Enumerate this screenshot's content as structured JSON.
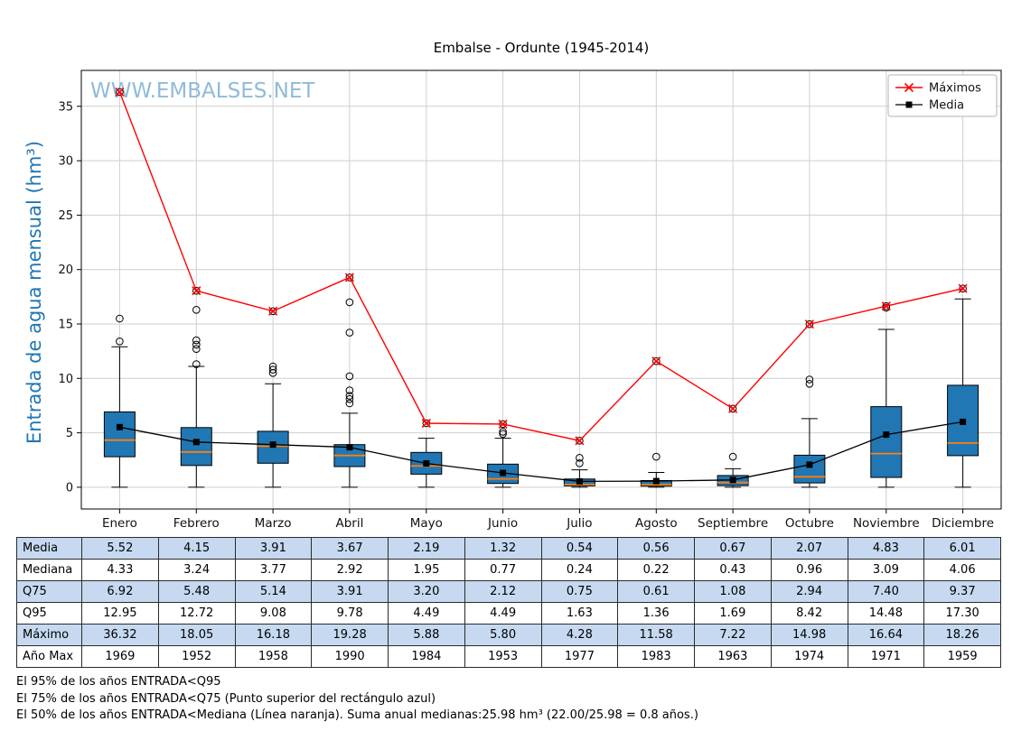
{
  "title": "Embalse - Ordunte (1945-2014)",
  "watermark": "WWW.EMBALSES.NET",
  "chart_data": {
    "type": "boxplot",
    "categories": [
      "Enero",
      "Febrero",
      "Marzo",
      "Abril",
      "Mayo",
      "Junio",
      "Julio",
      "Agosto",
      "Septiembre",
      "Octubre",
      "Noviembre",
      "Diciembre"
    ],
    "ylabel": "Entrada de agua mensual (hm³)",
    "ylim": [
      -2,
      38.3
    ],
    "yticks": [
      0,
      5,
      10,
      15,
      20,
      25,
      30,
      35
    ],
    "grid": true,
    "legend_position": "top-right",
    "legend": [
      {
        "label": "Máximos",
        "marker": "x",
        "color": "#ff0000"
      },
      {
        "label": "Media",
        "marker": "square",
        "color": "#000000"
      }
    ],
    "series": [
      {
        "name": "Máximos",
        "type": "line",
        "marker": "x",
        "color": "#ff0000",
        "values": [
          36.32,
          18.05,
          16.18,
          19.28,
          5.88,
          5.8,
          4.28,
          11.58,
          7.22,
          14.98,
          16.64,
          18.26
        ]
      },
      {
        "name": "Media",
        "type": "line",
        "marker": "square",
        "color": "#000000",
        "values": [
          5.52,
          4.15,
          3.91,
          3.67,
          2.19,
          1.32,
          0.54,
          0.56,
          0.67,
          2.07,
          4.83,
          6.01
        ]
      }
    ],
    "boxes": [
      {
        "q1": 2.8,
        "median": 4.33,
        "q3": 6.92,
        "lo": 0.0,
        "hi": 12.9,
        "outliers": [
          13.4,
          15.5,
          36.32
        ]
      },
      {
        "q1": 2.0,
        "median": 3.24,
        "q3": 5.48,
        "lo": 0.0,
        "hi": 11.1,
        "outliers": [
          11.3,
          12.7,
          13.1,
          13.5,
          16.3,
          18.05
        ]
      },
      {
        "q1": 2.2,
        "median": 3.77,
        "q3": 5.14,
        "lo": 0.0,
        "hi": 9.5,
        "outliers": [
          10.5,
          10.8,
          11.1,
          16.18
        ]
      },
      {
        "q1": 1.9,
        "median": 2.92,
        "q3": 3.91,
        "lo": 0.0,
        "hi": 6.8,
        "outliers": [
          7.7,
          8.1,
          8.4,
          8.9,
          10.2,
          14.2,
          17.0,
          19.28
        ]
      },
      {
        "q1": 1.2,
        "median": 1.95,
        "q3": 3.2,
        "lo": 0.0,
        "hi": 4.5,
        "outliers": [
          5.88
        ]
      },
      {
        "q1": 0.35,
        "median": 0.77,
        "q3": 2.12,
        "lo": 0.0,
        "hi": 4.5,
        "outliers": [
          4.9,
          5.1,
          5.8
        ]
      },
      {
        "q1": 0.12,
        "median": 0.24,
        "q3": 0.75,
        "lo": 0.0,
        "hi": 1.6,
        "outliers": [
          2.2,
          2.7,
          4.28
        ]
      },
      {
        "q1": 0.1,
        "median": 0.22,
        "q3": 0.61,
        "lo": 0.0,
        "hi": 1.36,
        "outliers": [
          2.8,
          11.58
        ]
      },
      {
        "q1": 0.15,
        "median": 0.43,
        "q3": 1.08,
        "lo": 0.0,
        "hi": 1.7,
        "outliers": [
          2.8,
          7.22
        ]
      },
      {
        "q1": 0.4,
        "median": 0.96,
        "q3": 2.94,
        "lo": 0.0,
        "hi": 6.3,
        "outliers": [
          9.5,
          9.9,
          14.98
        ]
      },
      {
        "q1": 0.9,
        "median": 3.09,
        "q3": 7.4,
        "lo": 0.0,
        "hi": 14.5,
        "outliers": [
          16.5,
          16.64
        ]
      },
      {
        "q1": 2.9,
        "median": 4.06,
        "q3": 9.37,
        "lo": 0.0,
        "hi": 17.3,
        "outliers": [
          18.26
        ]
      }
    ],
    "colors": {
      "box_fill": "#2077b4",
      "median": "#ff7f0e",
      "max_line": "#ff0000",
      "mean_line": "#000000",
      "grid": "#cfcfcf",
      "axis": "#000000",
      "watermark": "#8fbbd9",
      "ylabel": "#1f77b4"
    }
  },
  "table": {
    "columns": [
      "Enero",
      "Febrero",
      "Marzo",
      "Abril",
      "Mayo",
      "Junio",
      "Julio",
      "Agosto",
      "Septiembre",
      "Octubre",
      "Noviembre",
      "Diciembre"
    ],
    "stripe_color": "#c6d9f1",
    "rows": [
      {
        "label": "Media",
        "values": [
          "5.52",
          "4.15",
          "3.91",
          "3.67",
          "2.19",
          "1.32",
          "0.54",
          "0.56",
          "0.67",
          "2.07",
          "4.83",
          "6.01"
        ]
      },
      {
        "label": "Mediana",
        "values": [
          "4.33",
          "3.24",
          "3.77",
          "2.92",
          "1.95",
          "0.77",
          "0.24",
          "0.22",
          "0.43",
          "0.96",
          "3.09",
          "4.06"
        ]
      },
      {
        "label": "Q75",
        "values": [
          "6.92",
          "5.48",
          "5.14",
          "3.91",
          "3.20",
          "2.12",
          "0.75",
          "0.61",
          "1.08",
          "2.94",
          "7.40",
          "9.37"
        ]
      },
      {
        "label": "Q95",
        "values": [
          "12.95",
          "12.72",
          "9.08",
          "9.78",
          "4.49",
          "4.49",
          "1.63",
          "1.36",
          "1.69",
          "8.42",
          "14.48",
          "17.30"
        ]
      },
      {
        "label": "Máximo",
        "values": [
          "36.32",
          "18.05",
          "16.18",
          "19.28",
          "5.88",
          "5.80",
          "4.28",
          "11.58",
          "7.22",
          "14.98",
          "16.64",
          "18.26"
        ]
      },
      {
        "label": "Año Max",
        "values": [
          "1969",
          "1952",
          "1958",
          "1990",
          "1984",
          "1953",
          "1977",
          "1983",
          "1963",
          "1974",
          "1971",
          "1959"
        ]
      }
    ]
  },
  "footnotes": [
    "El 95% de los años ENTRADA<Q95",
    "El 75% de los años ENTRADA<Q75 (Punto superior del rectángulo azul)",
    "El 50% de los años ENTRADA<Mediana (Línea naranja). Suma anual medianas:25.98 hm³ (22.00/25.98 = 0.8 años.)"
  ]
}
